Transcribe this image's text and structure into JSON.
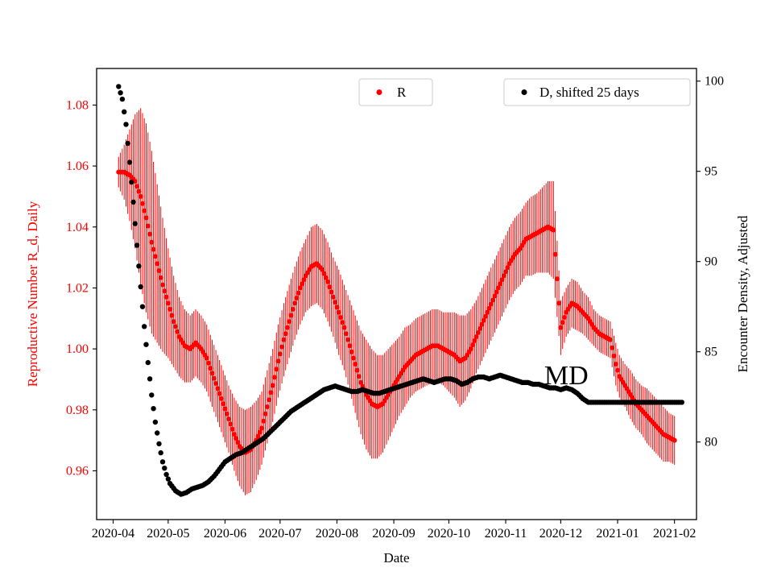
{
  "chart_data": {
    "type": "scatter",
    "title": "",
    "xlabel": "Date",
    "axes": {
      "x": {
        "min": "2020-03-23",
        "max": "2021-02-13",
        "tick_values": [
          "2020-04-01",
          "2020-05-01",
          "2020-06-01",
          "2020-07-01",
          "2020-08-01",
          "2020-09-01",
          "2020-10-01",
          "2020-11-01",
          "2020-12-01",
          "2021-01-01",
          "2021-02-01"
        ],
        "tick_labels": [
          "2020-04",
          "2020-05",
          "2020-06",
          "2020-07",
          "2020-08",
          "2020-09",
          "2020-10",
          "2020-11",
          "2020-12",
          "2021-01",
          "2021-02"
        ]
      },
      "y_left": {
        "label": "Reproductive Number R_d, Daily",
        "color": "#ff0000",
        "min": 0.944,
        "max": 1.092,
        "tick_values": [
          0.96,
          0.98,
          1.0,
          1.02,
          1.04,
          1.06,
          1.08
        ],
        "tick_labels": [
          "0.96",
          "0.98",
          "1.00",
          "1.02",
          "1.04",
          "1.06",
          "1.08"
        ]
      },
      "y_right": {
        "label": "Encounter Density, Adjusted",
        "color": "#000000",
        "min": 75.7,
        "max": 100.7,
        "tick_values": [
          80,
          85,
          90,
          95,
          100
        ],
        "tick_labels": [
          "80",
          "85",
          "90",
          "95",
          "100"
        ]
      }
    },
    "legend": [
      {
        "label": "R",
        "color": "#ff0000",
        "marker": "circle"
      },
      {
        "label": "D, shifted 25 days",
        "color": "#000000",
        "marker": "circle"
      }
    ],
    "annotations": [
      {
        "text": "MD",
        "x": "2020-11-22",
        "y_right": 83.2
      }
    ],
    "series": [
      {
        "id": "R",
        "name": "R",
        "axis": "left",
        "color": "#ff0000",
        "marker": "circle",
        "marker_size": 3,
        "error_bars": true,
        "points": [
          [
            "2020-04-04",
            1.058,
            0.005
          ],
          [
            "2020-04-07",
            1.058,
            0.009
          ],
          [
            "2020-04-10",
            1.057,
            0.015
          ],
          [
            "2020-04-13",
            1.055,
            0.022
          ],
          [
            "2020-04-16",
            1.05,
            0.029
          ],
          [
            "2020-04-19",
            1.043,
            0.031
          ],
          [
            "2020-04-22",
            1.035,
            0.03
          ],
          [
            "2020-04-25",
            1.028,
            0.026
          ],
          [
            "2020-04-28",
            1.021,
            0.022
          ],
          [
            "2020-05-01",
            1.015,
            0.018
          ],
          [
            "2020-05-04",
            1.009,
            0.015
          ],
          [
            "2020-05-07",
            1.004,
            0.013
          ],
          [
            "2020-05-10",
            1.001,
            0.012
          ],
          [
            "2020-05-13",
            1.0,
            0.011
          ],
          [
            "2020-05-16",
            1.002,
            0.011
          ],
          [
            "2020-05-19",
            1.0,
            0.011
          ],
          [
            "2020-05-22",
            0.997,
            0.011
          ],
          [
            "2020-05-25",
            0.992,
            0.011
          ],
          [
            "2020-05-28",
            0.987,
            0.011
          ],
          [
            "2020-05-31",
            0.982,
            0.011
          ],
          [
            "2020-06-03",
            0.977,
            0.011
          ],
          [
            "2020-06-06",
            0.972,
            0.012
          ],
          [
            "2020-06-09",
            0.968,
            0.013
          ],
          [
            "2020-06-12",
            0.966,
            0.014
          ],
          [
            "2020-06-15",
            0.967,
            0.014
          ],
          [
            "2020-06-18",
            0.97,
            0.013
          ],
          [
            "2020-06-21",
            0.974,
            0.012
          ],
          [
            "2020-06-24",
            0.981,
            0.012
          ],
          [
            "2020-06-27",
            0.988,
            0.012
          ],
          [
            "2020-06-30",
            0.996,
            0.012
          ],
          [
            "2020-07-03",
            1.003,
            0.012
          ],
          [
            "2020-07-06",
            1.009,
            0.012
          ],
          [
            "2020-07-09",
            1.015,
            0.012
          ],
          [
            "2020-07-12",
            1.02,
            0.012
          ],
          [
            "2020-07-15",
            1.024,
            0.012
          ],
          [
            "2020-07-18",
            1.027,
            0.013
          ],
          [
            "2020-07-21",
            1.028,
            0.013
          ],
          [
            "2020-07-24",
            1.026,
            0.013
          ],
          [
            "2020-07-27",
            1.022,
            0.013
          ],
          [
            "2020-07-30",
            1.017,
            0.013
          ],
          [
            "2020-08-02",
            1.012,
            0.014
          ],
          [
            "2020-08-05",
            1.007,
            0.014
          ],
          [
            "2020-08-08",
            1.001,
            0.015
          ],
          [
            "2020-08-11",
            0.995,
            0.016
          ],
          [
            "2020-08-14",
            0.989,
            0.017
          ],
          [
            "2020-08-17",
            0.985,
            0.018
          ],
          [
            "2020-08-20",
            0.982,
            0.018
          ],
          [
            "2020-08-23",
            0.981,
            0.017
          ],
          [
            "2020-08-26",
            0.982,
            0.016
          ],
          [
            "2020-08-29",
            0.985,
            0.015
          ],
          [
            "2020-09-01",
            0.988,
            0.014
          ],
          [
            "2020-09-04",
            0.991,
            0.013
          ],
          [
            "2020-09-07",
            0.994,
            0.013
          ],
          [
            "2020-09-10",
            0.996,
            0.012
          ],
          [
            "2020-09-13",
            0.998,
            0.012
          ],
          [
            "2020-09-16",
            0.999,
            0.012
          ],
          [
            "2020-09-19",
            1.0,
            0.012
          ],
          [
            "2020-09-22",
            1.001,
            0.012
          ],
          [
            "2020-09-25",
            1.001,
            0.012
          ],
          [
            "2020-09-28",
            1.0,
            0.012
          ],
          [
            "2020-10-01",
            0.999,
            0.013
          ],
          [
            "2020-10-04",
            0.998,
            0.014
          ],
          [
            "2020-10-07",
            0.996,
            0.015
          ],
          [
            "2020-10-10",
            0.997,
            0.014
          ],
          [
            "2020-10-13",
            1.0,
            0.013
          ],
          [
            "2020-10-16",
            1.004,
            0.012
          ],
          [
            "2020-10-19",
            1.008,
            0.012
          ],
          [
            "2020-10-22",
            1.012,
            0.012
          ],
          [
            "2020-10-25",
            1.016,
            0.012
          ],
          [
            "2020-10-28",
            1.02,
            0.012
          ],
          [
            "2020-10-31",
            1.024,
            0.012
          ],
          [
            "2020-11-03",
            1.028,
            0.012
          ],
          [
            "2020-11-06",
            1.031,
            0.012
          ],
          [
            "2020-11-09",
            1.033,
            0.012
          ],
          [
            "2020-11-12",
            1.036,
            0.012
          ],
          [
            "2020-11-15",
            1.037,
            0.013
          ],
          [
            "2020-11-18",
            1.038,
            0.013
          ],
          [
            "2020-11-21",
            1.039,
            0.014
          ],
          [
            "2020-11-24",
            1.04,
            0.015
          ],
          [
            "2020-11-27",
            1.039,
            0.016
          ],
          [
            "2020-12-01",
            1.007,
            0.009
          ],
          [
            "2020-12-04",
            1.012,
            0.008
          ],
          [
            "2020-12-07",
            1.015,
            0.008
          ],
          [
            "2020-12-10",
            1.014,
            0.008
          ],
          [
            "2020-12-13",
            1.012,
            0.007
          ],
          [
            "2020-12-16",
            1.01,
            0.007
          ],
          [
            "2020-12-19",
            1.007,
            0.006
          ],
          [
            "2020-12-22",
            1.005,
            0.006
          ],
          [
            "2020-12-25",
            1.004,
            0.006
          ],
          [
            "2020-12-28",
            1.003,
            0.006
          ],
          [
            "2020-12-31",
            0.995,
            0.007
          ],
          [
            "2021-01-02",
            0.991,
            0.007
          ],
          [
            "2021-01-05",
            0.988,
            0.007
          ],
          [
            "2021-01-08",
            0.985,
            0.008
          ],
          [
            "2021-01-11",
            0.982,
            0.008
          ],
          [
            "2021-01-14",
            0.98,
            0.008
          ],
          [
            "2021-01-17",
            0.978,
            0.009
          ],
          [
            "2021-01-20",
            0.976,
            0.009
          ],
          [
            "2021-01-23",
            0.974,
            0.009
          ],
          [
            "2021-01-26",
            0.972,
            0.009
          ],
          [
            "2021-01-29",
            0.971,
            0.008
          ],
          [
            "2021-02-01",
            0.97,
            0.008
          ]
        ]
      },
      {
        "id": "D",
        "name": "D, shifted 25 days",
        "axis": "right",
        "color": "#000000",
        "marker": "circle",
        "marker_size": 3.2,
        "error_bars": false,
        "points": [
          [
            "2020-04-04",
            99.7
          ],
          [
            "2020-04-06",
            99.0
          ],
          [
            "2020-04-08",
            97.6
          ],
          [
            "2020-04-10",
            95.5
          ],
          [
            "2020-04-12",
            93.3
          ],
          [
            "2020-04-14",
            90.9
          ],
          [
            "2020-04-16",
            88.6
          ],
          [
            "2020-04-18",
            86.4
          ],
          [
            "2020-04-20",
            84.4
          ],
          [
            "2020-04-22",
            82.6
          ],
          [
            "2020-04-24",
            81.1
          ],
          [
            "2020-04-26",
            79.9
          ],
          [
            "2020-04-28",
            78.9
          ],
          [
            "2020-04-30",
            78.2
          ],
          [
            "2020-05-02",
            77.7
          ],
          [
            "2020-05-05",
            77.3
          ],
          [
            "2020-05-08",
            77.1
          ],
          [
            "2020-05-11",
            77.2
          ],
          [
            "2020-05-14",
            77.4
          ],
          [
            "2020-05-17",
            77.5
          ],
          [
            "2020-05-20",
            77.6
          ],
          [
            "2020-05-23",
            77.8
          ],
          [
            "2020-05-26",
            78.1
          ],
          [
            "2020-05-29",
            78.5
          ],
          [
            "2020-06-01",
            78.9
          ],
          [
            "2020-06-04",
            79.1
          ],
          [
            "2020-06-07",
            79.3
          ],
          [
            "2020-06-10",
            79.4
          ],
          [
            "2020-06-13",
            79.6
          ],
          [
            "2020-06-16",
            79.8
          ],
          [
            "2020-06-19",
            80.0
          ],
          [
            "2020-06-22",
            80.2
          ],
          [
            "2020-06-25",
            80.5
          ],
          [
            "2020-06-28",
            80.8
          ],
          [
            "2020-07-01",
            81.1
          ],
          [
            "2020-07-04",
            81.4
          ],
          [
            "2020-07-07",
            81.7
          ],
          [
            "2020-07-10",
            81.9
          ],
          [
            "2020-07-13",
            82.1
          ],
          [
            "2020-07-16",
            82.3
          ],
          [
            "2020-07-19",
            82.5
          ],
          [
            "2020-07-22",
            82.7
          ],
          [
            "2020-07-25",
            82.9
          ],
          [
            "2020-07-28",
            83.0
          ],
          [
            "2020-07-31",
            83.1
          ],
          [
            "2020-08-03",
            83.0
          ],
          [
            "2020-08-06",
            82.9
          ],
          [
            "2020-08-09",
            82.8
          ],
          [
            "2020-08-12",
            82.8
          ],
          [
            "2020-08-15",
            82.9
          ],
          [
            "2020-08-18",
            82.8
          ],
          [
            "2020-08-21",
            82.7
          ],
          [
            "2020-08-24",
            82.7
          ],
          [
            "2020-08-27",
            82.8
          ],
          [
            "2020-08-30",
            82.9
          ],
          [
            "2020-09-02",
            83.0
          ],
          [
            "2020-09-05",
            83.1
          ],
          [
            "2020-09-08",
            83.2
          ],
          [
            "2020-09-11",
            83.3
          ],
          [
            "2020-09-14",
            83.4
          ],
          [
            "2020-09-17",
            83.5
          ],
          [
            "2020-09-20",
            83.4
          ],
          [
            "2020-09-23",
            83.3
          ],
          [
            "2020-09-26",
            83.4
          ],
          [
            "2020-09-29",
            83.5
          ],
          [
            "2020-10-02",
            83.5
          ],
          [
            "2020-10-05",
            83.4
          ],
          [
            "2020-10-08",
            83.2
          ],
          [
            "2020-10-11",
            83.3
          ],
          [
            "2020-10-14",
            83.5
          ],
          [
            "2020-10-17",
            83.6
          ],
          [
            "2020-10-20",
            83.6
          ],
          [
            "2020-10-23",
            83.5
          ],
          [
            "2020-10-26",
            83.6
          ],
          [
            "2020-10-29",
            83.7
          ],
          [
            "2020-11-01",
            83.6
          ],
          [
            "2020-11-04",
            83.5
          ],
          [
            "2020-11-07",
            83.4
          ],
          [
            "2020-11-10",
            83.3
          ],
          [
            "2020-11-13",
            83.3
          ],
          [
            "2020-11-16",
            83.2
          ],
          [
            "2020-11-19",
            83.2
          ],
          [
            "2020-11-22",
            83.1
          ],
          [
            "2020-11-25",
            83.0
          ],
          [
            "2020-11-28",
            83.0
          ],
          [
            "2020-12-01",
            82.9
          ],
          [
            "2020-12-04",
            83.0
          ],
          [
            "2020-12-07",
            82.9
          ],
          [
            "2020-12-10",
            82.7
          ],
          [
            "2020-12-13",
            82.4
          ],
          [
            "2020-12-16",
            82.2
          ],
          [
            "2020-12-19",
            82.2
          ],
          [
            "2020-12-22",
            82.2
          ],
          [
            "2020-12-25",
            82.2
          ],
          [
            "2020-12-28",
            82.2
          ],
          [
            "2020-12-31",
            82.2
          ],
          [
            "2021-01-03",
            82.2
          ],
          [
            "2021-01-06",
            82.2
          ],
          [
            "2021-01-09",
            82.2
          ],
          [
            "2021-01-12",
            82.2
          ],
          [
            "2021-01-15",
            82.2
          ],
          [
            "2021-01-18",
            82.2
          ],
          [
            "2021-01-21",
            82.2
          ],
          [
            "2021-01-24",
            82.2
          ],
          [
            "2021-01-27",
            82.2
          ],
          [
            "2021-01-30",
            82.2
          ],
          [
            "2021-02-02",
            82.2
          ],
          [
            "2021-02-05",
            82.2
          ]
        ]
      }
    ]
  }
}
